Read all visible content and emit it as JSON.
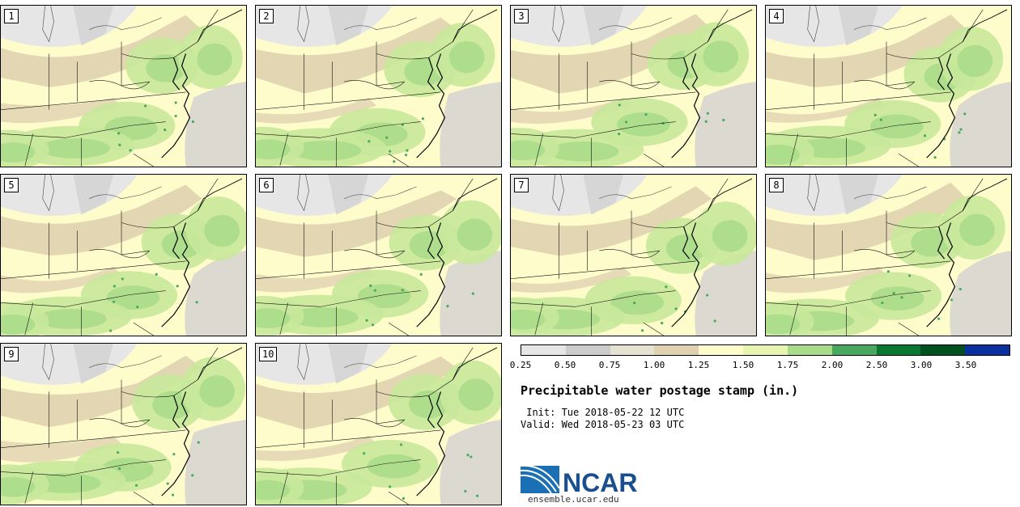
{
  "stamps": [
    {
      "label": "1"
    },
    {
      "label": "2"
    },
    {
      "label": "3"
    },
    {
      "label": "4"
    },
    {
      "label": "5"
    },
    {
      "label": "6"
    },
    {
      "label": "7"
    },
    {
      "label": "8"
    },
    {
      "label": "9"
    },
    {
      "label": "10"
    }
  ],
  "legend": {
    "ticks": [
      "0.25",
      "0.50",
      "0.75",
      "1.00",
      "1.25",
      "1.50",
      "1.75",
      "2.00",
      "2.50",
      "3.00",
      "3.50"
    ],
    "colors": [
      "#e6e6e6",
      "#cccccc",
      "#e6e2d2",
      "#e0d2b0",
      "#fffccc",
      "#e8f5b0",
      "#a8dc88",
      "#48a860",
      "#087830",
      "#005020",
      "#0a30a0"
    ]
  },
  "title": "Precipitable water postage stamp (in.)",
  "init": " Init: Tue 2018-05-22 12 UTC",
  "valid": "Valid: Wed 2018-05-23 03 UTC",
  "logo": {
    "text": "NCAR",
    "url": "ensemble.ucar.edu"
  }
}
